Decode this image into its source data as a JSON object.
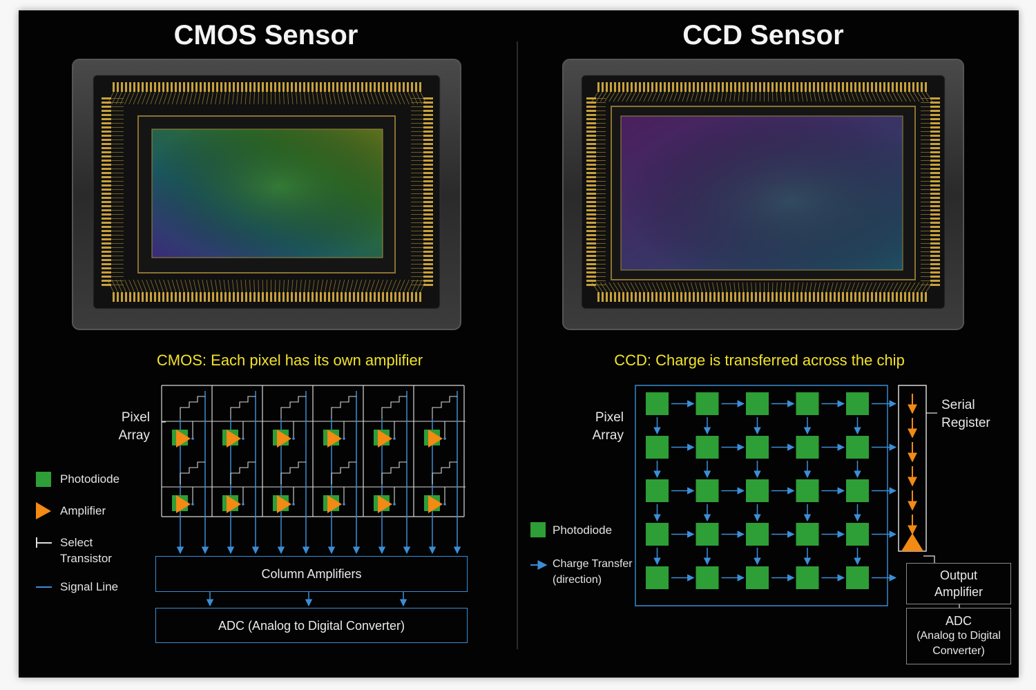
{
  "cmos": {
    "title": "CMOS Sensor",
    "caption": "CMOS: Each pixel has its own amplifier",
    "pixel_array_line1": "Pixel",
    "pixel_array_line2": "Array",
    "column_amplifiers": "Column Amplifiers",
    "adc": "ADC (Analog to Digital Converter)",
    "legend": {
      "photodiode": "Photodiode",
      "amplifier": "Amplifier",
      "select_line1": "Select",
      "select_line2": "Transistor",
      "signal_line": "Signal Line"
    }
  },
  "ccd": {
    "title": "CCD Sensor",
    "caption": "CCD: Charge is transferred across the chip",
    "pixel_array_line1": "Pixel",
    "pixel_array_line2": "Array",
    "serial_line1": "Serial",
    "serial_line2": "Register",
    "output_line1": "Output",
    "output_line2": "Amplifier",
    "adc_line1": "ADC",
    "adc_line2": "(Analog to Digital",
    "adc_line3": "Converter)",
    "legend": {
      "photodiode": "Photodiode",
      "charge_line1": "Charge Transfer",
      "charge_line2": "(direction)"
    }
  },
  "colors": {
    "photodiode": "#2e9e36",
    "amplifier": "#f28a14",
    "signal": "#3b8ed6",
    "caption": "#f2e32b",
    "gold": "#c9a23c"
  },
  "grid": {
    "cmos_rows": 2,
    "cmos_cols": 6,
    "ccd_rows": 5,
    "ccd_cols": 5
  }
}
